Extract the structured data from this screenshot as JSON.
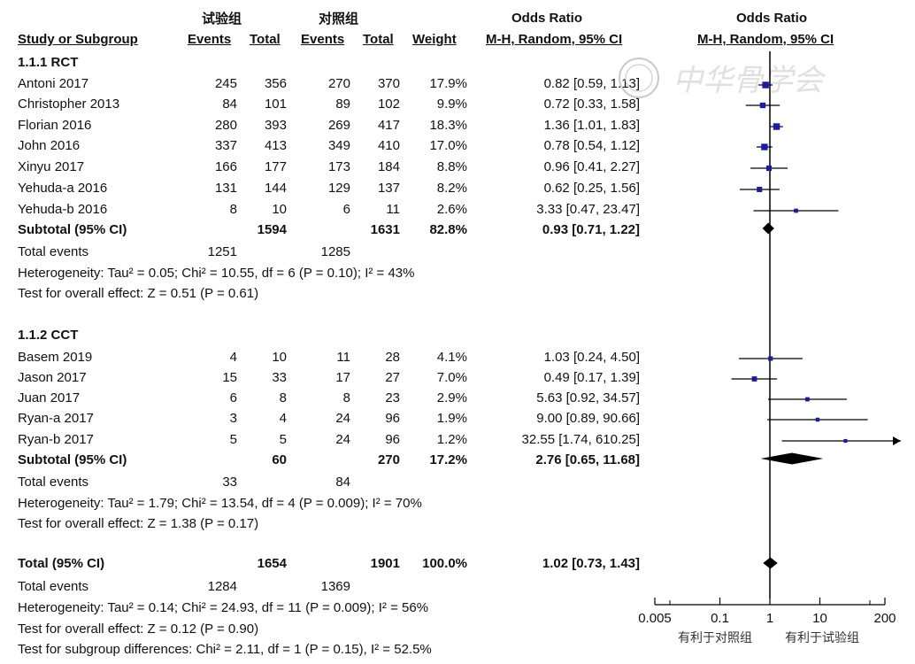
{
  "header": {
    "group_exp": "试验组",
    "group_ctl": "对照组",
    "or_title_left": "Odds Ratio",
    "or_title_right": "Odds Ratio",
    "study_col": "Study or Subgroup",
    "events1": "Events",
    "total1": "Total",
    "events2": "Events",
    "total2": "Total",
    "weight": "Weight",
    "method_left": "M-H, Random, 95% CI",
    "method_right": "M-H, Random, 95% CI"
  },
  "subgroups": [
    {
      "title": "1.1.1 RCT",
      "studies": [
        {
          "name": "Antoni 2017",
          "e1": "245",
          "t1": "356",
          "e2": "270",
          "t2": "370",
          "weight": "17.9%",
          "ci": "0.82 [0.59, 1.13]"
        },
        {
          "name": "Christopher 2013",
          "e1": "84",
          "t1": "101",
          "e2": "89",
          "t2": "102",
          "weight": "9.9%",
          "ci": "0.72 [0.33, 1.58]"
        },
        {
          "name": "Florian 2016",
          "e1": "280",
          "t1": "393",
          "e2": "269",
          "t2": "417",
          "weight": "18.3%",
          "ci": "1.36 [1.01, 1.83]"
        },
        {
          "name": "John 2016",
          "e1": "337",
          "t1": "413",
          "e2": "349",
          "t2": "410",
          "weight": "17.0%",
          "ci": "0.78 [0.54, 1.12]"
        },
        {
          "name": "Xinyu 2017",
          "e1": "166",
          "t1": "177",
          "e2": "173",
          "t2": "184",
          "weight": "8.8%",
          "ci": "0.96 [0.41, 2.27]"
        },
        {
          "name": "Yehuda-a 2016",
          "e1": "131",
          "t1": "144",
          "e2": "129",
          "t2": "137",
          "weight": "8.2%",
          "ci": "0.62 [0.25, 1.56]"
        },
        {
          "name": "Yehuda-b 2016",
          "e1": "8",
          "t1": "10",
          "e2": "6",
          "t2": "11",
          "weight": "2.6%",
          "ci": "3.33 [0.47, 23.47]"
        }
      ],
      "subtotal": {
        "label": "Subtotal (95% CI)",
        "t1": "1594",
        "t2": "1631",
        "weight": "82.8%",
        "ci": "0.93 [0.71, 1.22]"
      },
      "total_events": {
        "label": "Total events",
        "e1": "1251",
        "e2": "1285"
      },
      "heterogeneity": "Heterogeneity: Tau² = 0.05; Chi² = 10.55, df = 6 (P = 0.10); I² = 43%",
      "overall": "Test for overall effect: Z = 0.51 (P = 0.61)"
    },
    {
      "title": "1.1.2 CCT",
      "studies": [
        {
          "name": "Basem 2019",
          "e1": "4",
          "t1": "10",
          "e2": "11",
          "t2": "28",
          "weight": "4.1%",
          "ci": "1.03 [0.24, 4.50]"
        },
        {
          "name": "Jason 2017",
          "e1": "15",
          "t1": "33",
          "e2": "17",
          "t2": "27",
          "weight": "7.0%",
          "ci": "0.49 [0.17, 1.39]"
        },
        {
          "name": "Juan 2017",
          "e1": "6",
          "t1": "8",
          "e2": "8",
          "t2": "23",
          "weight": "2.9%",
          "ci": "5.63 [0.92, 34.57]"
        },
        {
          "name": "Ryan-a 2017",
          "e1": "3",
          "t1": "4",
          "e2": "24",
          "t2": "96",
          "weight": "1.9%",
          "ci": "9.00 [0.89, 90.66]"
        },
        {
          "name": "Ryan-b 2017",
          "e1": "5",
          "t1": "5",
          "e2": "24",
          "t2": "96",
          "weight": "1.2%",
          "ci": "32.55 [1.74, 610.25]"
        }
      ],
      "subtotal": {
        "label": "Subtotal (95% CI)",
        "t1": "60",
        "t2": "270",
        "weight": "17.2%",
        "ci": "2.76 [0.65, 11.68]"
      },
      "total_events": {
        "label": "Total events",
        "e1": "33",
        "e2": "84"
      },
      "heterogeneity": "Heterogeneity: Tau² = 1.79; Chi² = 13.54, df = 4 (P = 0.009); I² = 70%",
      "overall": "Test for overall effect: Z = 1.38 (P = 0.17)"
    }
  ],
  "total": {
    "label": "Total (95% CI)",
    "t1": "1654",
    "t2": "1901",
    "weight": "100.0%",
    "ci": "1.02 [0.73, 1.43]"
  },
  "total_events": {
    "label": "Total events",
    "e1": "1284",
    "e2": "1369"
  },
  "heterogeneity": "Heterogeneity: Tau² = 0.14; Chi² = 24.93, df = 11 (P = 0.009); I² = 56%",
  "overall": "Test for overall effect: Z = 0.12 (P = 0.90)",
  "subgroup_diff": "Test for subgroup differences: Chi² = 2.11, df = 1 (P = 0.15), I² = 52.5%",
  "axis": {
    "ticks": [
      "0.005",
      "0.1",
      "1",
      "10",
      "200"
    ],
    "favours_left": "有利于对照组",
    "favours_right": "有利于试验组"
  },
  "watermark": "中华骨学会",
  "colors": {
    "marker": "#1a1aaa",
    "line": "#000000"
  },
  "chart_data": {
    "type": "forest",
    "scale": "log",
    "xlim": [
      0.005,
      200
    ],
    "xticks": [
      0.005,
      0.1,
      1,
      10,
      200
    ],
    "null_line": 1,
    "studies": [
      {
        "name": "Antoni 2017",
        "or": 0.82,
        "lo": 0.59,
        "hi": 1.13,
        "weight": 17.9
      },
      {
        "name": "Christopher 2013",
        "or": 0.72,
        "lo": 0.33,
        "hi": 1.58,
        "weight": 9.9
      },
      {
        "name": "Florian 2016",
        "or": 1.36,
        "lo": 1.01,
        "hi": 1.83,
        "weight": 18.3
      },
      {
        "name": "John 2016",
        "or": 0.78,
        "lo": 0.54,
        "hi": 1.12,
        "weight": 17.0
      },
      {
        "name": "Xinyu 2017",
        "or": 0.96,
        "lo": 0.41,
        "hi": 2.27,
        "weight": 8.8
      },
      {
        "name": "Yehuda-a 2016",
        "or": 0.62,
        "lo": 0.25,
        "hi": 1.56,
        "weight": 8.2
      },
      {
        "name": "Yehuda-b 2016",
        "or": 3.33,
        "lo": 0.47,
        "hi": 23.47,
        "weight": 2.6
      },
      {
        "name": "Basem 2019",
        "or": 1.03,
        "lo": 0.24,
        "hi": 4.5,
        "weight": 4.1
      },
      {
        "name": "Jason 2017",
        "or": 0.49,
        "lo": 0.17,
        "hi": 1.39,
        "weight": 7.0
      },
      {
        "name": "Juan 2017",
        "or": 5.63,
        "lo": 0.92,
        "hi": 34.57,
        "weight": 2.9
      },
      {
        "name": "Ryan-a 2017",
        "or": 9.0,
        "lo": 0.89,
        "hi": 90.66,
        "weight": 1.9
      },
      {
        "name": "Ryan-b 2017",
        "or": 32.55,
        "lo": 1.74,
        "hi": 610.25,
        "weight": 1.2
      }
    ],
    "pooled": [
      {
        "name": "Subtotal 1.1.1 RCT",
        "or": 0.93,
        "lo": 0.71,
        "hi": 1.22
      },
      {
        "name": "Subtotal 1.1.2 CCT",
        "or": 2.76,
        "lo": 0.65,
        "hi": 11.68
      },
      {
        "name": "Total",
        "or": 1.02,
        "lo": 0.73,
        "hi": 1.43
      }
    ]
  }
}
